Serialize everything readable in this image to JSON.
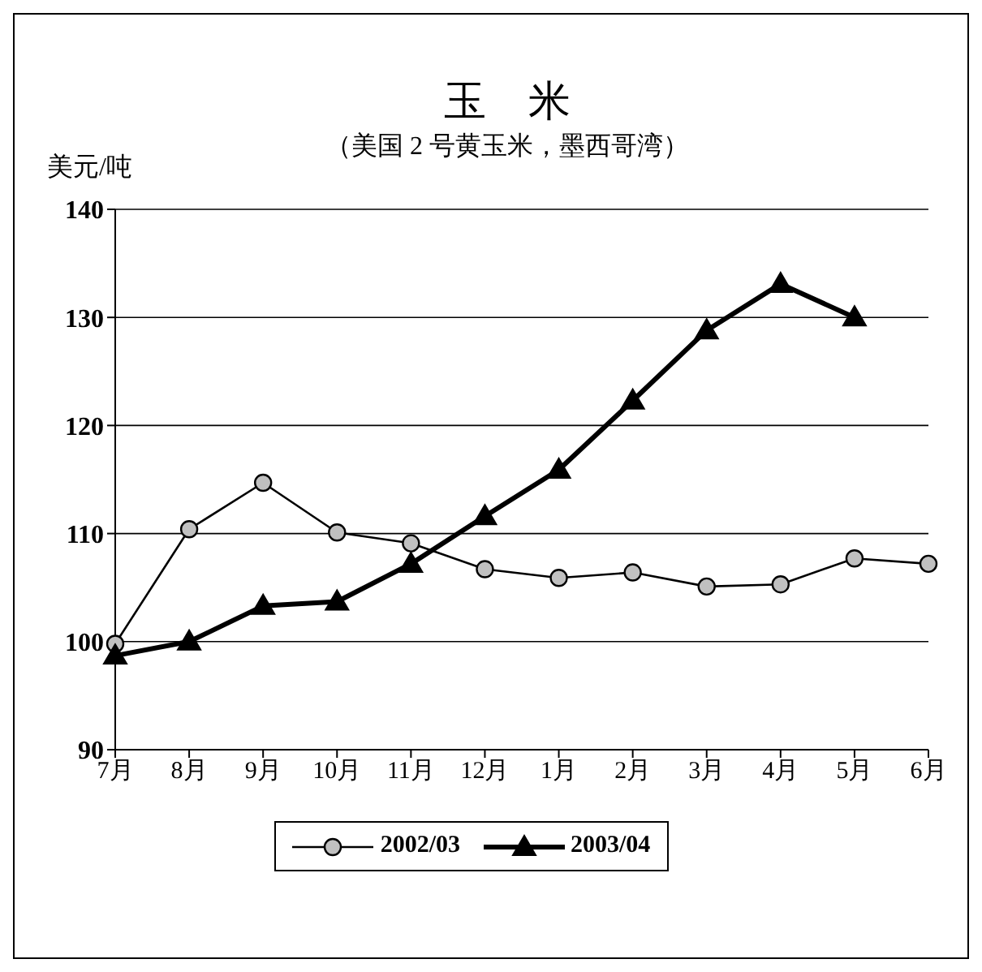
{
  "chart_data": {
    "type": "line",
    "title": "玉　米",
    "subtitle": "（美国 2 号黄玉米，墨西哥湾）",
    "ylabel": "美元/吨",
    "categories": [
      "7月",
      "8月",
      "9月",
      "10月",
      "11月",
      "12月",
      "1月",
      "2月",
      "3月",
      "4月",
      "5月",
      "6月"
    ],
    "series": [
      {
        "name": "2002/03",
        "color": "#c0c0c0",
        "marker": "circle",
        "values": [
          99.8,
          110.4,
          114.7,
          110.1,
          109.1,
          106.7,
          105.9,
          106.4,
          105.1,
          105.3,
          107.7,
          107.2
        ]
      },
      {
        "name": "2003/04",
        "color": "#000000",
        "marker": "triangle",
        "values": [
          98.7,
          100,
          103.3,
          103.7,
          107.2,
          111.6,
          115.9,
          122.3,
          128.8,
          133.1,
          130,
          null
        ]
      }
    ],
    "ylim": [
      90,
      140
    ],
    "yticks": [
      90,
      100,
      110,
      120,
      130,
      140
    ],
    "grid": "y",
    "legend": "bottom"
  }
}
